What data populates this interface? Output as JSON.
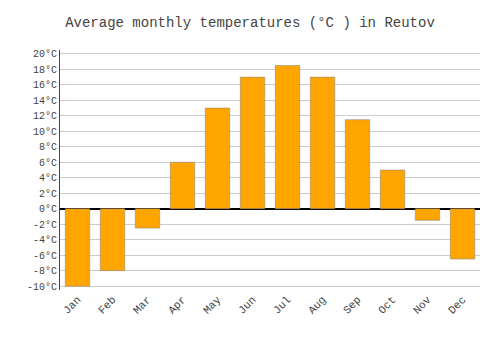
{
  "chart_data": {
    "type": "bar",
    "title": "Average monthly temperatures (°C ) in Reutov",
    "categories": [
      "Jan",
      "Feb",
      "Mar",
      "Apr",
      "May",
      "Jun",
      "Jul",
      "Aug",
      "Sep",
      "Oct",
      "Nov",
      "Dec"
    ],
    "values": [
      -10,
      -8,
      -2.5,
      6,
      13,
      17,
      18.5,
      17,
      11.5,
      5,
      -1.5,
      -6.5
    ],
    "color": "#FFA500",
    "ylim": [
      -10.5,
      20.5
    ],
    "yticks": [
      {
        "value": -10,
        "label": "-10°C"
      },
      {
        "value": -8,
        "label": "-8°C"
      },
      {
        "value": -6,
        "label": "-6°C"
      },
      {
        "value": -4,
        "label": "-4°C"
      },
      {
        "value": -2,
        "label": "-2°C"
      },
      {
        "value": 0,
        "label": "0°C"
      },
      {
        "value": 2,
        "label": "2°C"
      },
      {
        "value": 4,
        "label": "4°C"
      },
      {
        "value": 6,
        "label": "6°C"
      },
      {
        "value": 8,
        "label": "8°C"
      },
      {
        "value": 10,
        "label": "10°C"
      },
      {
        "value": 12,
        "label": "12°C"
      },
      {
        "value": 14,
        "label": "14°C"
      },
      {
        "value": 16,
        "label": "16°C"
      },
      {
        "value": 18,
        "label": "18°C"
      },
      {
        "value": 20,
        "label": "20°C"
      }
    ],
    "grid": true
  }
}
